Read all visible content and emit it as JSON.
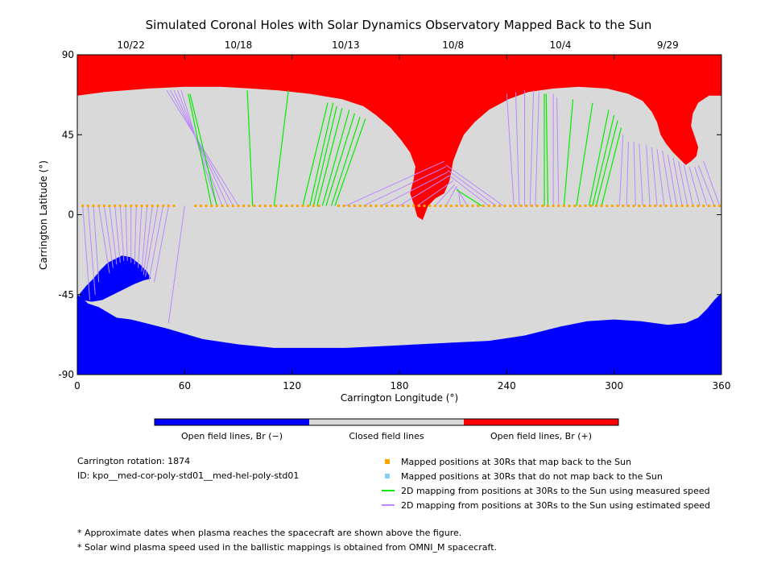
{
  "chart_data": {
    "type": "map",
    "title": "Simulated Coronal Holes with Solar Dynamics Observatory Mapped Back to the Sun",
    "xlabel": "Carrington Longitude (°)",
    "ylabel": "Carrington Latitude (°)",
    "xlim": [
      0,
      360
    ],
    "ylim": [
      -90,
      90
    ],
    "x_ticks": [
      0,
      60,
      120,
      180,
      240,
      300,
      360
    ],
    "y_ticks": [
      -90,
      -45,
      0,
      45,
      90
    ],
    "top_date_ticks": [
      {
        "label": "10/22",
        "lon": 30
      },
      {
        "label": "10/18",
        "lon": 90
      },
      {
        "label": "10/13",
        "lon": 150
      },
      {
        "label": "10/8",
        "lon": 210
      },
      {
        "label": "10/4",
        "lon": 270
      },
      {
        "label": "9/29",
        "lon": 330
      }
    ],
    "colorbar": [
      {
        "label": "Open field lines, Br (−)",
        "color": "#0000ff"
      },
      {
        "label": "Closed field lines",
        "color": "#d9d9d9"
      },
      {
        "label": "Open field lines, Br (+)",
        "color": "#ff0000"
      }
    ],
    "mapped_positions_lat": 5,
    "mapped_positions_lon": [
      3,
      6,
      9,
      12,
      15,
      18,
      21,
      24,
      27,
      30,
      33,
      36,
      39,
      42,
      45,
      48,
      51,
      54,
      66,
      69,
      72,
      75,
      78,
      81,
      84,
      87,
      90,
      93,
      96,
      99,
      102,
      105,
      108,
      111,
      114,
      117,
      120,
      123,
      126,
      129,
      132,
      135,
      146,
      149,
      152,
      155,
      158,
      161,
      164,
      167,
      170,
      173,
      176,
      179,
      182,
      185,
      188,
      191,
      194,
      197,
      200,
      203,
      206,
      209,
      212,
      215,
      218,
      221,
      224,
      227,
      230,
      233,
      236,
      239,
      242,
      245,
      248,
      251,
      254,
      257,
      260,
      263,
      266,
      269,
      272,
      275,
      278,
      281,
      284,
      287,
      290,
      293,
      296,
      299,
      302,
      305,
      308,
      311,
      314,
      317,
      320,
      323,
      326,
      329,
      332,
      335,
      338,
      341,
      344,
      347,
      350,
      353,
      356,
      359
    ],
    "mapping_lines_measured": [
      [
        75,
        5,
        62,
        68
      ],
      [
        78,
        5,
        63,
        68
      ],
      [
        98,
        5,
        95,
        70
      ],
      [
        110,
        5,
        118,
        70
      ],
      [
        126,
        5,
        140,
        63
      ],
      [
        130,
        5,
        143,
        63
      ],
      [
        132,
        5,
        145,
        61
      ],
      [
        134,
        5,
        148,
        60
      ],
      [
        137,
        5,
        152,
        59
      ],
      [
        139,
        5,
        155,
        57
      ],
      [
        142,
        5,
        158,
        55
      ],
      [
        144,
        5,
        161,
        54
      ],
      [
        226,
        5,
        212,
        14
      ],
      [
        261,
        5,
        261,
        68
      ],
      [
        263,
        5,
        262,
        68
      ],
      [
        272,
        5,
        277,
        65
      ],
      [
        279,
        5,
        288,
        63
      ],
      [
        286,
        5,
        297,
        59
      ],
      [
        288,
        5,
        300,
        56
      ],
      [
        290,
        5,
        302,
        53
      ],
      [
        293,
        5,
        304,
        49
      ]
    ],
    "mapping_lines_estimated": [
      [
        3,
        5,
        7,
        -48
      ],
      [
        6,
        5,
        10,
        -45
      ],
      [
        9,
        5,
        12,
        -38
      ],
      [
        12,
        5,
        18,
        -33
      ],
      [
        15,
        5,
        20,
        -30
      ],
      [
        18,
        5,
        22,
        -28
      ],
      [
        21,
        5,
        24,
        -27
      ],
      [
        24,
        5,
        26,
        -26
      ],
      [
        27,
        5,
        28,
        -26
      ],
      [
        30,
        5,
        30,
        -27
      ],
      [
        33,
        5,
        32,
        -28
      ],
      [
        36,
        5,
        34,
        -30
      ],
      [
        39,
        5,
        36,
        -32
      ],
      [
        42,
        5,
        37,
        -34
      ],
      [
        45,
        5,
        38,
        -35
      ],
      [
        48,
        5,
        40,
        -37
      ],
      [
        51,
        5,
        43,
        -38
      ],
      [
        60,
        5,
        51,
        -61
      ],
      [
        78,
        5,
        58,
        70
      ],
      [
        81,
        5,
        56,
        70
      ],
      [
        84,
        5,
        54,
        70
      ],
      [
        87,
        5,
        52,
        70
      ],
      [
        90,
        5,
        50,
        70
      ],
      [
        150,
        5,
        205,
        30
      ],
      [
        160,
        5,
        206,
        27
      ],
      [
        170,
        5,
        207,
        24
      ],
      [
        180,
        5,
        208,
        22
      ],
      [
        190,
        5,
        210,
        19
      ],
      [
        200,
        5,
        211,
        17
      ],
      [
        206,
        5,
        212,
        16
      ],
      [
        214,
        5,
        213,
        14
      ],
      [
        218,
        5,
        212,
        15
      ],
      [
        230,
        5,
        208,
        22
      ],
      [
        234,
        5,
        207,
        25
      ],
      [
        238,
        5,
        206,
        28
      ],
      [
        244,
        5,
        240,
        68
      ],
      [
        247,
        5,
        245,
        69
      ],
      [
        250,
        5,
        250,
        70
      ],
      [
        253,
        5,
        255,
        70
      ],
      [
        256,
        5,
        258,
        69
      ],
      [
        266,
        5,
        266,
        68
      ],
      [
        269,
        5,
        268,
        66
      ],
      [
        303,
        5,
        305,
        45
      ],
      [
        307,
        5,
        308,
        41
      ],
      [
        312,
        5,
        311,
        41
      ],
      [
        316,
        5,
        314,
        40
      ],
      [
        320,
        5,
        318,
        39
      ],
      [
        324,
        5,
        321,
        38
      ],
      [
        328,
        5,
        324,
        37
      ],
      [
        332,
        5,
        327,
        36
      ],
      [
        335,
        5,
        330,
        34
      ],
      [
        338,
        5,
        333,
        32
      ],
      [
        341,
        5,
        336,
        30
      ],
      [
        344,
        5,
        339,
        28
      ],
      [
        348,
        5,
        342,
        27
      ],
      [
        352,
        5,
        345,
        27
      ],
      [
        356,
        5,
        347,
        28
      ],
      [
        359,
        5,
        350,
        30
      ]
    ],
    "legend": [
      {
        "label": "Mapped positions at 30Rs that map back to the Sun",
        "color": "#ffa500",
        "marker": "square"
      },
      {
        "label": "Mapped positions at 30Rs that do not map back to the Sun",
        "color": "#87cefa",
        "marker": "square"
      },
      {
        "label": "2D mapping from positions at 30Rs to the Sun using measured speed",
        "color": "#00ee00",
        "marker": "line"
      },
      {
        "label": "2D mapping from positions at 30Rs to the Sun using estimated speed",
        "color": "#bb88ff",
        "marker": "line"
      }
    ],
    "info": {
      "rotation": "Carrington rotation: 1874",
      "id": "ID: kpo__med-cor-poly-std01__med-hel-poly-std01"
    },
    "notes": [
      "* Approximate dates when plasma reaches the spacecraft are shown above the figure.",
      "* Solar wind plasma speed used in the ballistic mappings is obtained from OMNI_M spacecraft."
    ]
  }
}
